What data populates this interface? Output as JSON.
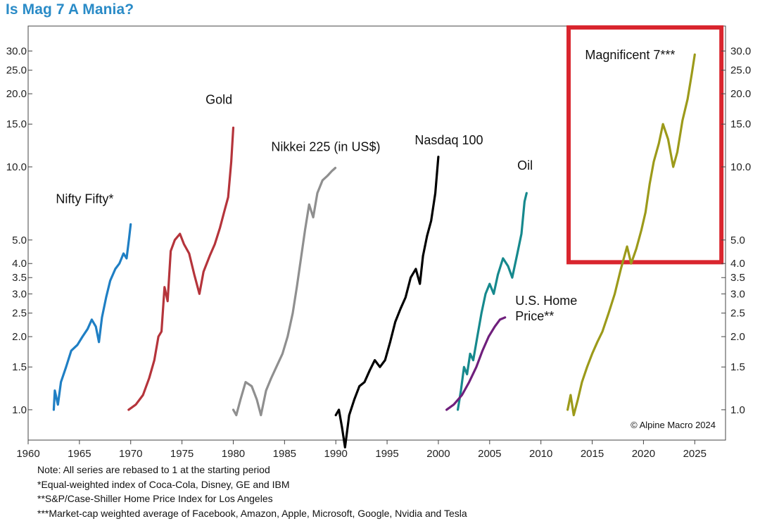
{
  "header": {
    "title": "Is Mag 7 A Mania?"
  },
  "chart_data": {
    "type": "line",
    "y_scale": "log",
    "ylim": [
      0.75,
      38
    ],
    "xlim": [
      1960,
      2028
    ],
    "x_ticks": [
      1960,
      1965,
      1970,
      1975,
      1980,
      1985,
      1990,
      1995,
      2000,
      2005,
      2010,
      2015,
      2020,
      2025
    ],
    "y_ticks": [
      {
        "value": 1.0,
        "label": "1.0"
      },
      {
        "value": 1.5,
        "label": "1.5"
      },
      {
        "value": 2.0,
        "label": "2.0"
      },
      {
        "value": 2.5,
        "label": "2.5"
      },
      {
        "value": 3.0,
        "label": "3.0"
      },
      {
        "value": 3.5,
        "label": "3.5"
      },
      {
        "value": 4.0,
        "label": "4.0"
      },
      {
        "value": 5.0,
        "label": "5.0"
      },
      {
        "value": 10.0,
        "label": "10.0"
      },
      {
        "value": 15.0,
        "label": "15.0"
      },
      {
        "value": 20.0,
        "label": "20.0"
      },
      {
        "value": 25.0,
        "label": "25.0"
      },
      {
        "value": 30.0,
        "label": "30.0"
      }
    ],
    "series": [
      {
        "name": "Nifty Fifty*",
        "label_lines": [
          "Nifty Fifty*"
        ],
        "color": "#1f7fc4",
        "label_x": 1962.7,
        "label_y": 7.1,
        "points": [
          [
            1962.5,
            1.0
          ],
          [
            1962.6,
            1.2
          ],
          [
            1962.9,
            1.05
          ],
          [
            1963.2,
            1.3
          ],
          [
            1963.7,
            1.5
          ],
          [
            1964.2,
            1.75
          ],
          [
            1964.8,
            1.85
          ],
          [
            1965.3,
            2.0
          ],
          [
            1965.8,
            2.15
          ],
          [
            1966.2,
            2.35
          ],
          [
            1966.6,
            2.2
          ],
          [
            1966.9,
            1.9
          ],
          [
            1967.2,
            2.4
          ],
          [
            1967.6,
            2.9
          ],
          [
            1968.0,
            3.4
          ],
          [
            1968.5,
            3.8
          ],
          [
            1968.9,
            4.0
          ],
          [
            1969.3,
            4.4
          ],
          [
            1969.6,
            4.2
          ],
          [
            1969.85,
            5.1
          ],
          [
            1970.0,
            5.8
          ]
        ]
      },
      {
        "name": "Gold",
        "label_lines": [
          "Gold"
        ],
        "color": "#b5343b",
        "label_x": 1977.3,
        "label_y": 18.2,
        "points": [
          [
            1969.8,
            1.0
          ],
          [
            1970.5,
            1.05
          ],
          [
            1971.2,
            1.15
          ],
          [
            1971.8,
            1.35
          ],
          [
            1972.3,
            1.6
          ],
          [
            1972.7,
            2.0
          ],
          [
            1973.0,
            2.1
          ],
          [
            1973.3,
            3.2
          ],
          [
            1973.6,
            2.8
          ],
          [
            1973.9,
            4.5
          ],
          [
            1974.3,
            5.0
          ],
          [
            1974.8,
            5.3
          ],
          [
            1975.2,
            4.8
          ],
          [
            1975.7,
            4.4
          ],
          [
            1976.2,
            3.6
          ],
          [
            1976.7,
            3.0
          ],
          [
            1977.1,
            3.7
          ],
          [
            1977.7,
            4.3
          ],
          [
            1978.2,
            4.8
          ],
          [
            1978.7,
            5.6
          ],
          [
            1979.1,
            6.5
          ],
          [
            1979.5,
            7.5
          ],
          [
            1979.8,
            10.5
          ],
          [
            1980.0,
            14.5
          ]
        ]
      },
      {
        "name": "Nikkei 225 (in US$)",
        "label_lines": [
          "Nikkei 225 (in US$)"
        ],
        "color": "#8f8f8f",
        "label_x": 1983.7,
        "label_y": 11.6,
        "points": [
          [
            1980.0,
            1.0
          ],
          [
            1980.3,
            0.95
          ],
          [
            1980.7,
            1.1
          ],
          [
            1981.2,
            1.3
          ],
          [
            1981.8,
            1.25
          ],
          [
            1982.3,
            1.1
          ],
          [
            1982.7,
            0.95
          ],
          [
            1983.2,
            1.2
          ],
          [
            1983.7,
            1.35
          ],
          [
            1984.2,
            1.5
          ],
          [
            1984.8,
            1.7
          ],
          [
            1985.3,
            2.0
          ],
          [
            1985.8,
            2.5
          ],
          [
            1986.2,
            3.2
          ],
          [
            1986.6,
            4.2
          ],
          [
            1987.0,
            5.5
          ],
          [
            1987.4,
            7.0
          ],
          [
            1987.8,
            6.2
          ],
          [
            1988.2,
            7.8
          ],
          [
            1988.7,
            8.8
          ],
          [
            1989.2,
            9.2
          ],
          [
            1989.6,
            9.6
          ],
          [
            1989.95,
            9.9
          ]
        ]
      },
      {
        "name": "Nasdaq 100",
        "label_lines": [
          "Nasdaq 100"
        ],
        "color": "#000000",
        "label_x": 1997.7,
        "label_y": 12.4,
        "points": [
          [
            1990.0,
            0.95
          ],
          [
            1990.3,
            1.0
          ],
          [
            1990.6,
            0.85
          ],
          [
            1990.9,
            0.7
          ],
          [
            1991.3,
            0.95
          ],
          [
            1991.8,
            1.1
          ],
          [
            1992.3,
            1.25
          ],
          [
            1992.8,
            1.3
          ],
          [
            1993.3,
            1.45
          ],
          [
            1993.8,
            1.6
          ],
          [
            1994.3,
            1.5
          ],
          [
            1994.8,
            1.6
          ],
          [
            1995.3,
            1.9
          ],
          [
            1995.8,
            2.3
          ],
          [
            1996.3,
            2.6
          ],
          [
            1996.8,
            2.9
          ],
          [
            1997.3,
            3.5
          ],
          [
            1997.8,
            3.8
          ],
          [
            1998.2,
            3.3
          ],
          [
            1998.5,
            4.3
          ],
          [
            1998.9,
            5.2
          ],
          [
            1999.3,
            6.0
          ],
          [
            1999.7,
            7.8
          ],
          [
            2000.0,
            11.0
          ]
        ]
      },
      {
        "name": "Oil",
        "label_lines": [
          "Oil"
        ],
        "color": "#16898d",
        "label_x": 2007.7,
        "label_y": 9.75,
        "points": [
          [
            2001.9,
            1.0
          ],
          [
            2002.2,
            1.2
          ],
          [
            2002.5,
            1.5
          ],
          [
            2002.8,
            1.4
          ],
          [
            2003.1,
            1.7
          ],
          [
            2003.4,
            1.6
          ],
          [
            2003.8,
            2.0
          ],
          [
            2004.2,
            2.5
          ],
          [
            2004.6,
            3.0
          ],
          [
            2005.0,
            3.3
          ],
          [
            2005.4,
            3.0
          ],
          [
            2005.8,
            3.6
          ],
          [
            2006.3,
            4.2
          ],
          [
            2006.8,
            3.9
          ],
          [
            2007.2,
            3.5
          ],
          [
            2007.7,
            4.4
          ],
          [
            2008.1,
            5.3
          ],
          [
            2008.4,
            7.2
          ],
          [
            2008.6,
            7.8
          ]
        ]
      },
      {
        "name": "U.S. Home Price**",
        "label_lines": [
          "U.S. Home",
          "Price**"
        ],
        "color": "#6f1f7c",
        "label_x": 2007.5,
        "label_y": 2.7,
        "points": [
          [
            2000.8,
            1.0
          ],
          [
            2001.5,
            1.05
          ],
          [
            2002.3,
            1.15
          ],
          [
            2003.0,
            1.3
          ],
          [
            2003.7,
            1.5
          ],
          [
            2004.3,
            1.75
          ],
          [
            2004.9,
            2.0
          ],
          [
            2005.5,
            2.2
          ],
          [
            2006.0,
            2.35
          ],
          [
            2006.5,
            2.4
          ]
        ]
      },
      {
        "name": "Magnificent 7***",
        "label_lines": [
          "Magnificent 7***"
        ],
        "color": "#9c9a1a",
        "label_x": 2014.3,
        "label_y": 27.8,
        "points": [
          [
            2012.6,
            1.0
          ],
          [
            2012.9,
            1.15
          ],
          [
            2013.2,
            0.95
          ],
          [
            2013.6,
            1.1
          ],
          [
            2014.0,
            1.3
          ],
          [
            2014.5,
            1.5
          ],
          [
            2015.0,
            1.7
          ],
          [
            2015.5,
            1.9
          ],
          [
            2016.0,
            2.1
          ],
          [
            2016.6,
            2.5
          ],
          [
            2017.2,
            3.0
          ],
          [
            2017.8,
            3.8
          ],
          [
            2018.4,
            4.7
          ],
          [
            2018.8,
            4.0
          ],
          [
            2019.3,
            4.6
          ],
          [
            2019.8,
            5.5
          ],
          [
            2020.2,
            6.5
          ],
          [
            2020.6,
            8.5
          ],
          [
            2021.0,
            10.5
          ],
          [
            2021.5,
            12.5
          ],
          [
            2021.9,
            15.0
          ],
          [
            2022.4,
            13.0
          ],
          [
            2022.9,
            10.0
          ],
          [
            2023.3,
            11.5
          ],
          [
            2023.8,
            15.5
          ],
          [
            2024.3,
            19.0
          ],
          [
            2024.7,
            24.0
          ],
          [
            2025.0,
            29.0
          ]
        ]
      }
    ],
    "highlight": {
      "color": "#d9252e",
      "x_start": 2012.7,
      "x_end": 2027.6,
      "y_low": 4.05,
      "y_high": 37.5
    }
  },
  "copyright": "© Alpine Macro 2024",
  "notes": [
    "Note: All series are rebased to 1 at the starting period",
    "*Equal-weighted index of Coca-Cola, Disney, GE and IBM",
    "**S&P/Case-Shiller Home Price Index for Los Angeles",
    "***Market-cap weighted average of Facebook, Amazon, Apple, Microsoft, Google, Nvidia and Tesla"
  ]
}
